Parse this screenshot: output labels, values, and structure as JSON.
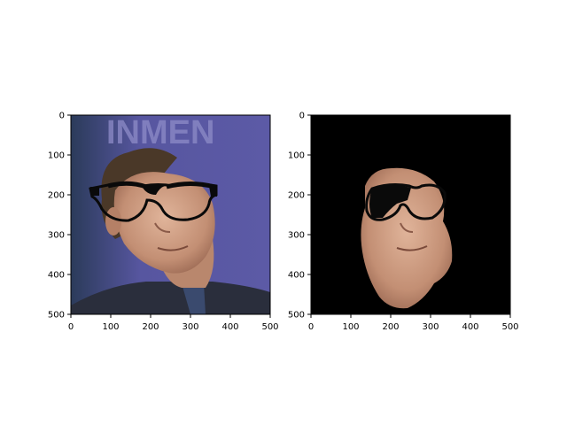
{
  "figure": {
    "background": "#ffffff",
    "panels": [
      {
        "id": "left",
        "content": "photo of man looking up wearing drawn black glasses, blue banner background",
        "x_ticks": [
          "0",
          "100",
          "200",
          "300",
          "400",
          "500"
        ],
        "y_ticks": [
          "0",
          "100",
          "200",
          "300",
          "400",
          "500"
        ],
        "xlim": [
          0,
          500
        ],
        "ylim": [
          0,
          500
        ],
        "banner_text": "INMEN",
        "colors": {
          "banner": "#5c5aa6",
          "skin": "#c99a80",
          "hair": "#4a3828",
          "jacket": "#2a2e3c",
          "glasses": "#0a0a0a"
        }
      },
      {
        "id": "right",
        "content": "segmented face with glasses on black background",
        "x_ticks": [
          "0",
          "100",
          "200",
          "300",
          "400",
          "500"
        ],
        "y_ticks": [
          "0",
          "100",
          "200",
          "300",
          "400",
          "500"
        ],
        "xlim": [
          0,
          500
        ],
        "ylim": [
          0,
          500
        ],
        "colors": {
          "background": "#000000",
          "skin": "#c99a80"
        }
      }
    ]
  }
}
